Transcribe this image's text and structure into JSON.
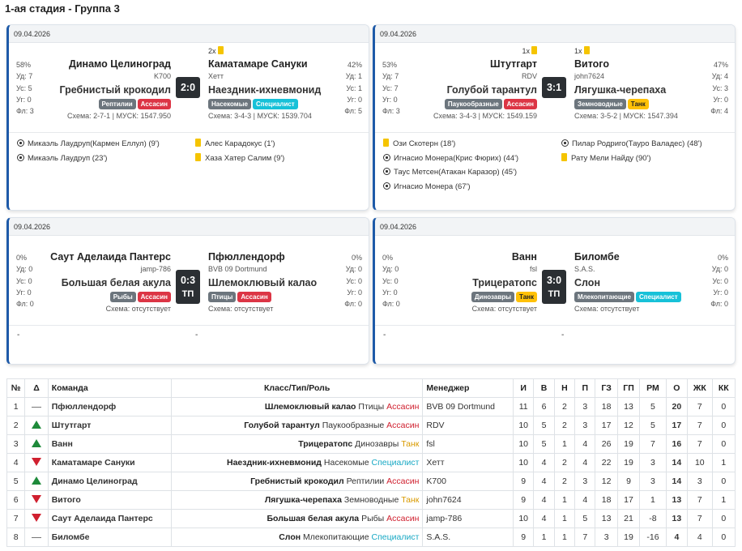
{
  "title": "1-ая стадия - Группа 3",
  "matches": [
    {
      "date": "09.04.2026",
      "home": {
        "pct": "58%",
        "ud": "Уд: 7",
        "us": "Ус: 5",
        "ug": "Уг: 0",
        "fl": "Фл: 3",
        "cards": "",
        "name": "Динамо Целиноград",
        "manager": "K700",
        "cls": "Гребнистый крокодил",
        "badge1": "Рептилии",
        "badge2": "Ассасин",
        "schema": "Схема: 2-7-1 | МУСК: 1547.950"
      },
      "away": {
        "pct": "42%",
        "ud": "Уд: 1",
        "us": "Ус: 1",
        "ug": "Уг: 0",
        "fl": "Фл: 5",
        "cards": "2x",
        "name": "Каматамаре Сануки",
        "manager": "Хетт",
        "cls": "Наездник-ихневмонид",
        "badge1": "Насекомые",
        "badge2": "Специалист",
        "schema": "Схема: 3-4-3 | МУСК: 1539.704"
      },
      "score": "2:0",
      "tp": "",
      "events_left": [
        "Микаэль Лаудруп(Кармен Еллул) (9')",
        "Микаэль Лаудруп (23')"
      ],
      "events_right": [
        "Алес Карадокус (1')",
        "Хаза Хатер Салим (9')"
      ]
    },
    {
      "date": "09.04.2026",
      "home": {
        "pct": "53%",
        "ud": "Уд: 7",
        "us": "Ус: 7",
        "ug": "Уг: 0",
        "fl": "Фл: 3",
        "cards": "1x",
        "name": "Штутгарт",
        "manager": "RDV",
        "cls": "Голубой тарантул",
        "badge1": "Паукообразные",
        "badge2": "Ассасин",
        "schema": "Схема: 3-4-3 | МУСК: 1549.159"
      },
      "away": {
        "pct": "47%",
        "ud": "Уд: 4",
        "us": "Ус: 3",
        "ug": "Уг: 0",
        "fl": "Фл: 4",
        "cards": "1x",
        "name": "Витого",
        "manager": "john7624",
        "cls": "Лягушка-черепаха",
        "badge1": "Земноводные",
        "badge2": "Танк",
        "schema": "Схема: 3-5-2 | МУСК: 1547.394"
      },
      "score": "3:1",
      "tp": "",
      "events_left": [
        "Ози Скотерн (18')",
        "Игнасио Монера(Крис Фюрих) (44')",
        "Таус Метсен(Атакан Каразор) (45')",
        "Игнасио Монера (67')"
      ],
      "events_right": [
        "Пилар Родриго(Тауро Валадес) (48')",
        "Рату Мели Найду (90')"
      ]
    },
    {
      "date": "09.04.2026",
      "home": {
        "pct": "0%",
        "ud": "Уд: 0",
        "us": "Ус: 0",
        "ug": "Уг: 0",
        "fl": "Фл: 0",
        "cards": "",
        "name": "Саут Аделаида Пантерс",
        "manager": "jamp-786",
        "cls": "Большая белая акула",
        "badge1": "Рыбы",
        "badge2": "Ассасин",
        "schema": "Схема: отсутствует"
      },
      "away": {
        "pct": "0%",
        "ud": "Уд: 0",
        "us": "Ус: 0",
        "ug": "Уг: 0",
        "fl": "Фл: 0",
        "cards": "",
        "name": "Пфюллендорф",
        "manager": "BVB 09 Dortmund",
        "cls": "Шлемоклювый калао",
        "badge1": "Птицы",
        "badge2": "Ассасин",
        "schema": "Схема: отсутствует"
      },
      "score": "0:3",
      "tp": "ТП",
      "dash_left": "-",
      "dash_right": "-"
    },
    {
      "date": "09.04.2026",
      "home": {
        "pct": "0%",
        "ud": "Уд: 0",
        "us": "Ус: 0",
        "ug": "Уг: 0",
        "fl": "Фл: 0",
        "cards": "",
        "name": "Ванн",
        "manager": "fsl",
        "cls": "Трицератопс",
        "badge1": "Динозавры",
        "badge2": "Танк",
        "schema": "Схема: отсутствует"
      },
      "away": {
        "pct": "0%",
        "ud": "Уд: 0",
        "us": "Ус: 0",
        "ug": "Уг: 0",
        "fl": "Фл: 0",
        "cards": "",
        "name": "Биломбе",
        "manager": "S.A.S.",
        "cls": "Слон",
        "badge1": "Млекопитающие",
        "badge2": "Специалист",
        "schema": "Схема: отсутствует"
      },
      "score": "3:0",
      "tp": "ТП",
      "dash_left": "-",
      "dash_right": "-"
    }
  ],
  "table": {
    "headers": [
      "№",
      "Δ",
      "Команда",
      "Класс/Тип/Роль",
      "Менеджер",
      "И",
      "В",
      "Н",
      "П",
      "ГЗ",
      "ГП",
      "РМ",
      "О",
      "ЖК",
      "КК"
    ],
    "rows": [
      {
        "n": "1",
        "trend": "same",
        "team": "Пфюллендорф",
        "cls": "Шлемоклювый калао",
        "type": "Птицы",
        "role": "Ассасин",
        "mgr": "BVB 09 Dortmund",
        "i": "11",
        "w": "6",
        "d": "2",
        "l": "3",
        "gf": "18",
        "ga": "13",
        "gd": "5",
        "pts": "20",
        "yc": "7",
        "rc": "0"
      },
      {
        "n": "2",
        "trend": "up",
        "team": "Штутгарт",
        "cls": "Голубой тарантул",
        "type": "Паукообразные",
        "role": "Ассасин",
        "mgr": "RDV",
        "i": "10",
        "w": "5",
        "d": "2",
        "l": "3",
        "gf": "17",
        "ga": "12",
        "gd": "5",
        "pts": "17",
        "yc": "7",
        "rc": "0"
      },
      {
        "n": "3",
        "trend": "up",
        "team": "Ванн",
        "cls": "Трицератопс",
        "type": "Динозавры",
        "role": "Танк",
        "mgr": "fsl",
        "i": "10",
        "w": "5",
        "d": "1",
        "l": "4",
        "gf": "26",
        "ga": "19",
        "gd": "7",
        "pts": "16",
        "yc": "7",
        "rc": "0"
      },
      {
        "n": "4",
        "trend": "down",
        "team": "Каматамаре Сануки",
        "cls": "Наездник-ихневмонид",
        "type": "Насекомые",
        "role": "Специалист",
        "mgr": "Хетт",
        "i": "10",
        "w": "4",
        "d": "2",
        "l": "4",
        "gf": "22",
        "ga": "19",
        "gd": "3",
        "pts": "14",
        "yc": "10",
        "rc": "1"
      },
      {
        "n": "5",
        "trend": "up",
        "team": "Динамо Целиноград",
        "cls": "Гребнистый крокодил",
        "type": "Рептилии",
        "role": "Ассасин",
        "mgr": "K700",
        "i": "9",
        "w": "4",
        "d": "2",
        "l": "3",
        "gf": "12",
        "ga": "9",
        "gd": "3",
        "pts": "14",
        "yc": "3",
        "rc": "0"
      },
      {
        "n": "6",
        "trend": "down",
        "team": "Витого",
        "cls": "Лягушка-черепаха",
        "type": "Земноводные",
        "role": "Танк",
        "mgr": "john7624",
        "i": "9",
        "w": "4",
        "d": "1",
        "l": "4",
        "gf": "18",
        "ga": "17",
        "gd": "1",
        "pts": "13",
        "yc": "7",
        "rc": "1"
      },
      {
        "n": "7",
        "trend": "down",
        "team": "Саут Аделаида Пантерс",
        "cls": "Большая белая акула",
        "type": "Рыбы",
        "role": "Ассасин",
        "mgr": "jamp-786",
        "i": "10",
        "w": "4",
        "d": "1",
        "l": "5",
        "gf": "13",
        "ga": "21",
        "gd": "-8",
        "pts": "13",
        "yc": "7",
        "rc": "0"
      },
      {
        "n": "8",
        "trend": "same",
        "team": "Биломбе",
        "cls": "Слон",
        "type": "Млекопитающие",
        "role": "Специалист",
        "mgr": "S.A.S.",
        "i": "9",
        "w": "1",
        "d": "1",
        "l": "7",
        "gf": "3",
        "ga": "19",
        "gd": "-16",
        "pts": "4",
        "yc": "4",
        "rc": "0"
      }
    ]
  }
}
